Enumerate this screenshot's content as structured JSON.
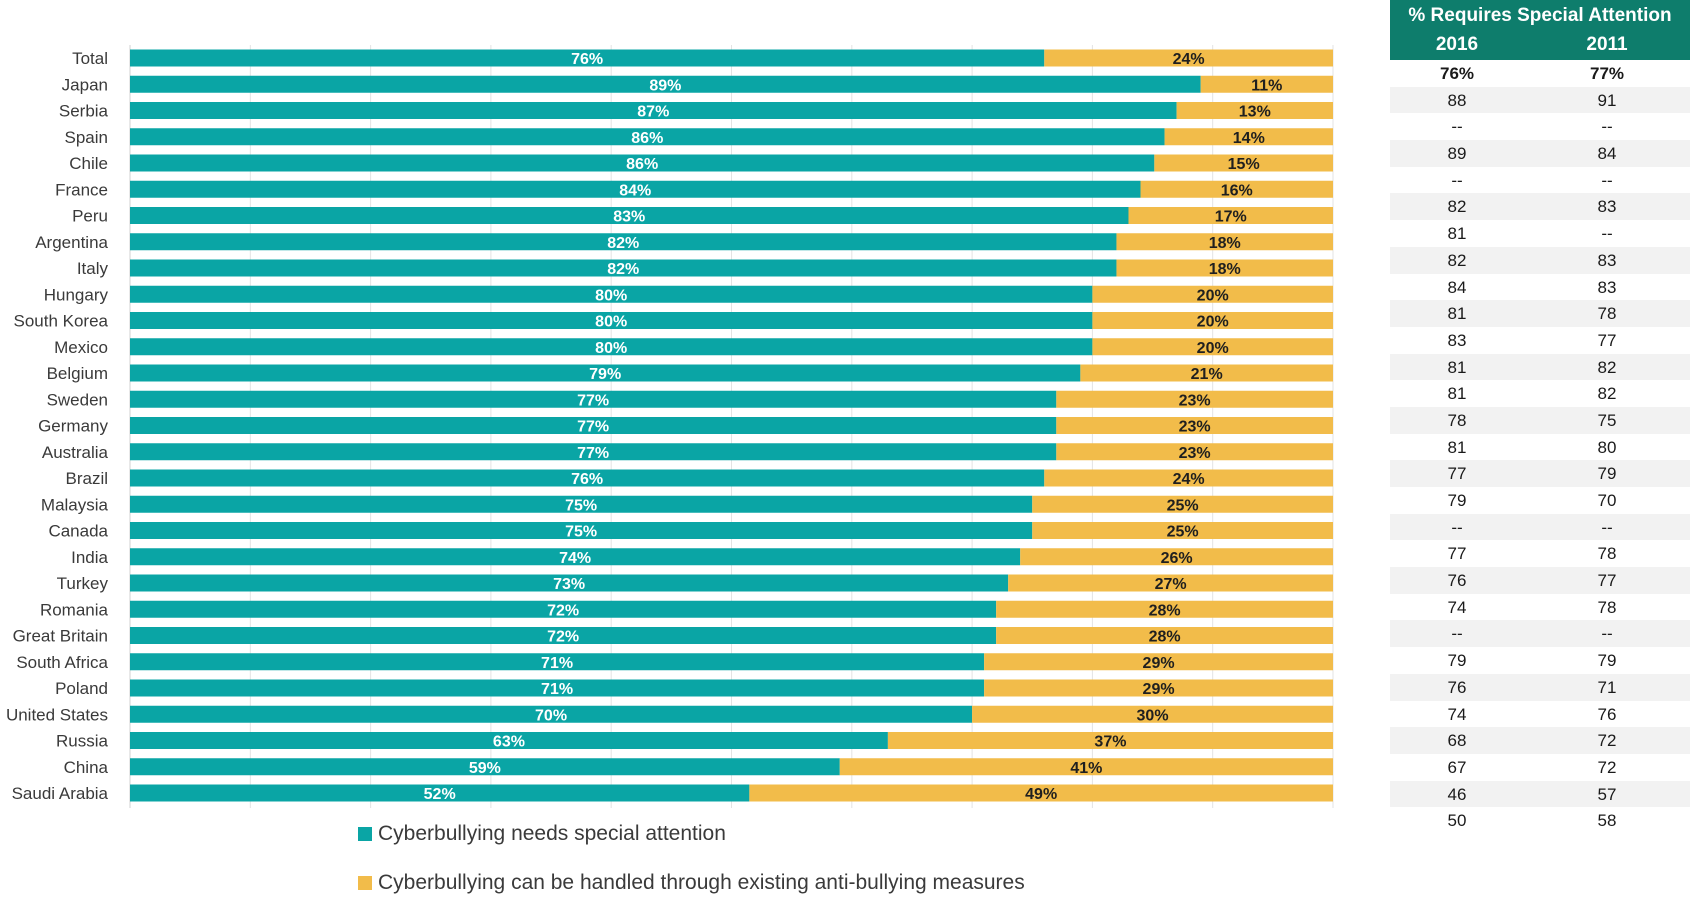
{
  "colors": {
    "series1": "#0aa5a5",
    "series2": "#f2bc4a",
    "label_light": "#ffffff",
    "label_dark": "#1f1f1f",
    "table_header": "#0e7d6c"
  },
  "chart_data": {
    "type": "bar",
    "orientation": "horizontal",
    "stacked": true,
    "xlim": [
      0,
      100
    ],
    "grid": true,
    "legend_position": "bottom",
    "categories": [
      "Total",
      "Japan",
      "Serbia",
      "Spain",
      "Chile",
      "France",
      "Peru",
      "Argentina",
      "Italy",
      "Hungary",
      "South Korea",
      "Mexico",
      "Belgium",
      "Sweden",
      "Germany",
      "Australia",
      "Brazil",
      "Malaysia",
      "Canada",
      "India",
      "Turkey",
      "Romania",
      "Great Britain",
      "South Africa",
      "Poland",
      "United States",
      "Russia",
      "China",
      "Saudi Arabia"
    ],
    "series": [
      {
        "name": "Cyberbullying needs special attention",
        "values": [
          76,
          89,
          87,
          86,
          86,
          84,
          83,
          82,
          82,
          80,
          80,
          80,
          79,
          77,
          77,
          77,
          76,
          75,
          75,
          74,
          73,
          72,
          72,
          71,
          71,
          70,
          63,
          59,
          52
        ],
        "labels": [
          "76%",
          "89%",
          "87%",
          "86%",
          "86%",
          "84%",
          "83%",
          "82%",
          "82%",
          "80%",
          "80%",
          "80%",
          "79%",
          "77%",
          "77%",
          "77%",
          "76%",
          "75%",
          "75%",
          "74%",
          "73%",
          "72%",
          "72%",
          "71%",
          "71%",
          "70%",
          "63%",
          "59%",
          "52%"
        ]
      },
      {
        "name": "Cyberbullying can be handled through existing anti-bullying measures",
        "values": [
          24,
          11,
          13,
          14,
          15,
          16,
          17,
          18,
          18,
          20,
          20,
          20,
          21,
          23,
          23,
          23,
          24,
          25,
          25,
          26,
          27,
          28,
          28,
          29,
          29,
          30,
          37,
          41,
          49
        ],
        "labels": [
          "24%",
          "11%",
          "13%",
          "14%",
          "15%",
          "16%",
          "17%",
          "18%",
          "18%",
          "20%",
          "20%",
          "20%",
          "21%",
          "23%",
          "23%",
          "23%",
          "24%",
          "25%",
          "25%",
          "26%",
          "27%",
          "28%",
          "28%",
          "29%",
          "29%",
          "30%",
          "37%",
          "41%",
          "49%"
        ]
      }
    ]
  },
  "legend": {
    "items": [
      {
        "label": "Cyberbullying needs special attention"
      },
      {
        "label": "Cyberbullying can be handled through existing anti-bullying measures"
      }
    ]
  },
  "side_table": {
    "title": "% Requires Special Attention",
    "col_2016": "2016",
    "col_2011": "2011",
    "rows": [
      [
        "76%",
        "77%"
      ],
      [
        "88",
        "91"
      ],
      [
        "--",
        "--"
      ],
      [
        "89",
        "84"
      ],
      [
        "--",
        "--"
      ],
      [
        "82",
        "83"
      ],
      [
        "81",
        "--"
      ],
      [
        "82",
        "83"
      ],
      [
        "84",
        "83"
      ],
      [
        "81",
        "78"
      ],
      [
        "83",
        "77"
      ],
      [
        "81",
        "82"
      ],
      [
        "81",
        "82"
      ],
      [
        "78",
        "75"
      ],
      [
        "81",
        "80"
      ],
      [
        "77",
        "79"
      ],
      [
        "79",
        "70"
      ],
      [
        "--",
        "--"
      ],
      [
        "77",
        "78"
      ],
      [
        "76",
        "77"
      ],
      [
        "74",
        "78"
      ],
      [
        "--",
        "--"
      ],
      [
        "79",
        "79"
      ],
      [
        "76",
        "71"
      ],
      [
        "74",
        "76"
      ],
      [
        "68",
        "72"
      ],
      [
        "67",
        "72"
      ],
      [
        "46",
        "57"
      ],
      [
        "50",
        "58"
      ]
    ]
  }
}
